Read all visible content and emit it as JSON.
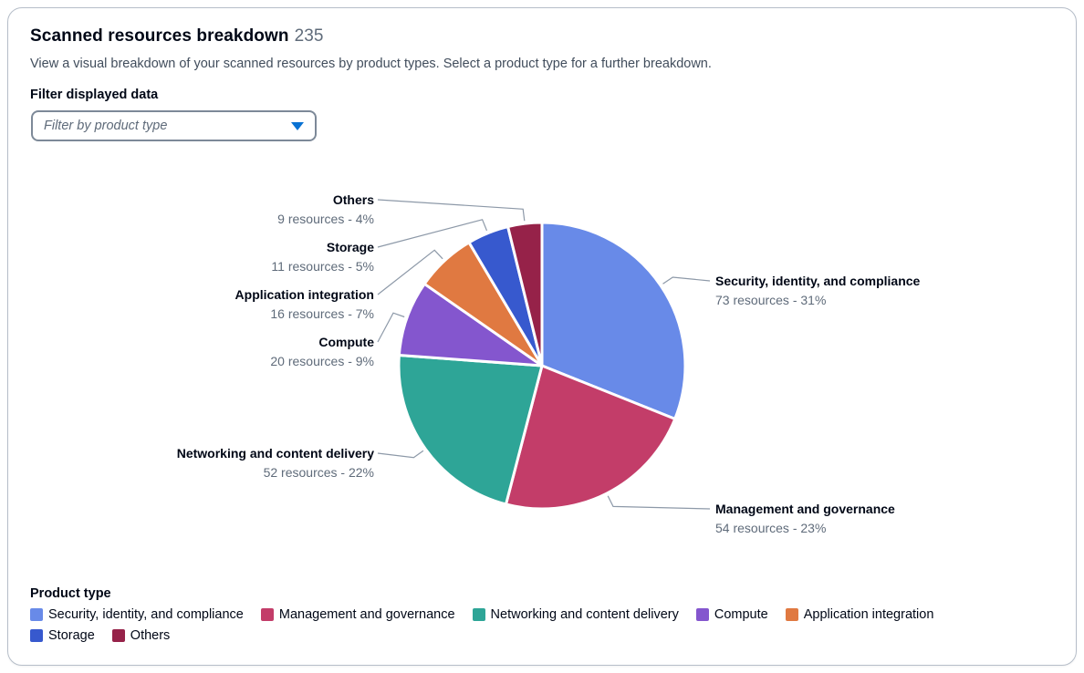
{
  "header": {
    "title": "Scanned resources breakdown",
    "count": "235",
    "description": "View a visual breakdown of your scanned resources by product types. Select a product type for a further breakdown."
  },
  "filter": {
    "label": "Filter displayed data",
    "placeholder": "Filter by product type"
  },
  "chart_data": {
    "type": "pie",
    "title": "Scanned resources breakdown",
    "total": 235,
    "unit_label": "resources",
    "legend_title": "Product type",
    "legend_position": "bottom",
    "slices": [
      {
        "label": "Security, identity, and compliance",
        "value": 73,
        "percent": "31%",
        "color": "#688AE8"
      },
      {
        "label": "Management and governance",
        "value": 54,
        "percent": "23%",
        "color": "#C33D69"
      },
      {
        "label": "Networking and content delivery",
        "value": 52,
        "percent": "22%",
        "color": "#2EA597"
      },
      {
        "label": "Compute",
        "value": 20,
        "percent": "9%",
        "color": "#8456CE"
      },
      {
        "label": "Application integration",
        "value": 16,
        "percent": "7%",
        "color": "#E07941"
      },
      {
        "label": "Storage",
        "value": 11,
        "percent": "5%",
        "color": "#3759CE"
      },
      {
        "label": "Others",
        "value": 9,
        "percent": "4%",
        "color": "#962249"
      }
    ],
    "colors": {
      "leader_line": "#8d99a8",
      "caret": "#0972d3",
      "border": "#b6bec9",
      "sub_text": "#5f6b7a"
    }
  }
}
